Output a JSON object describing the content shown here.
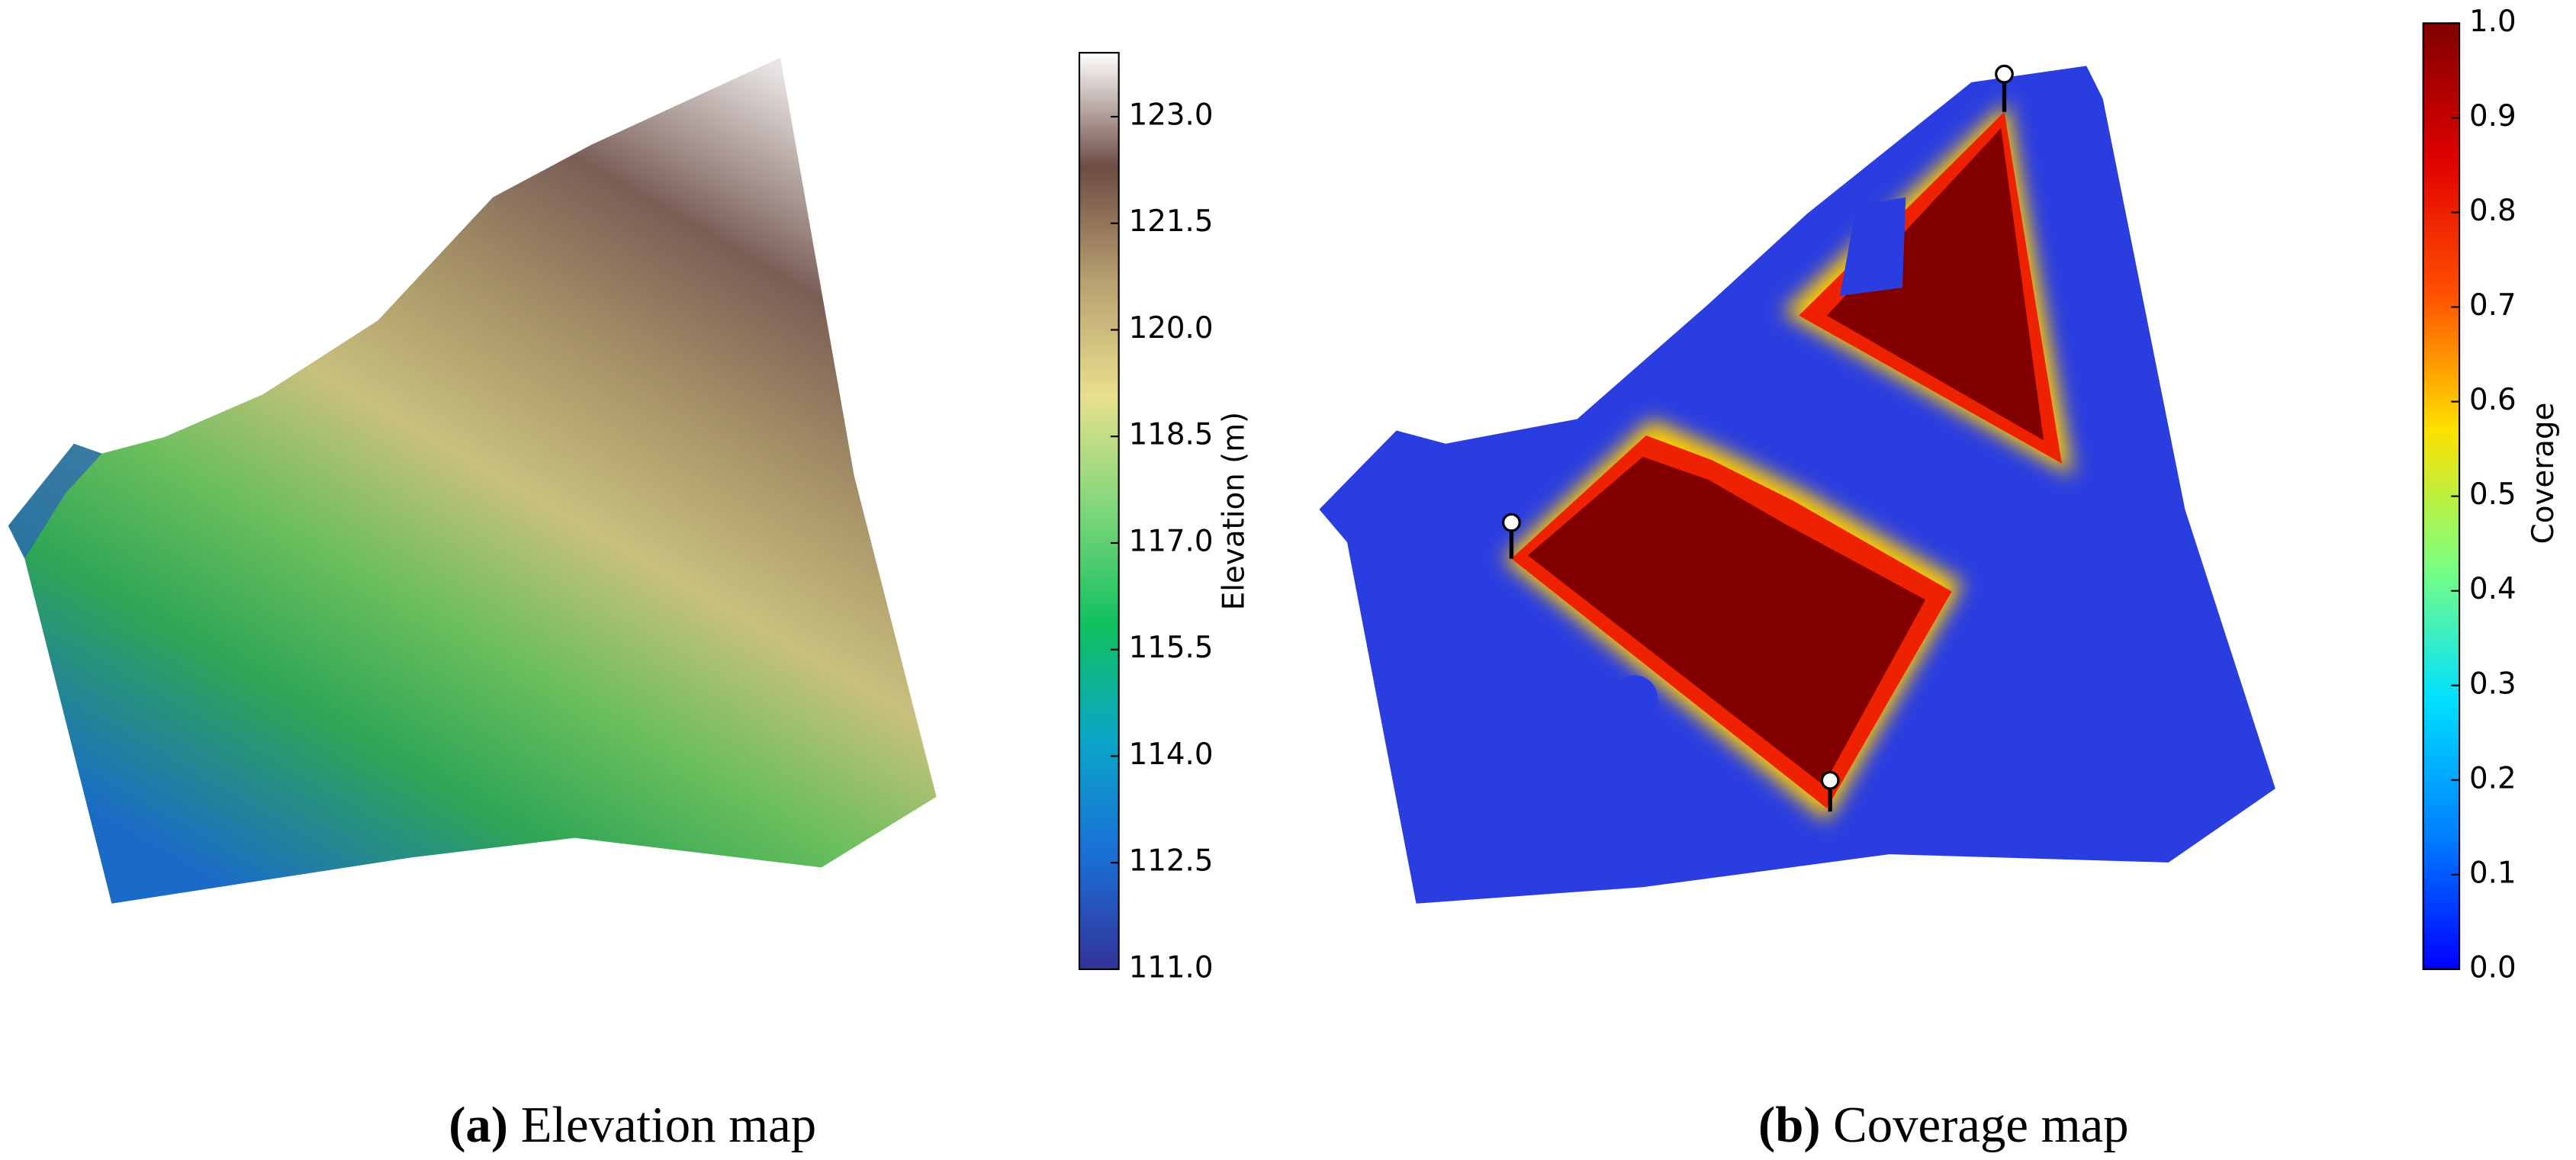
{
  "chart_data": [
    {
      "type": "surface",
      "caption_label": "(a)",
      "caption": "Elevation map",
      "colorbar_label": "Elevation (m)",
      "ylim": [
        111.0,
        123.9
      ],
      "yticks": [
        {
          "value": 111.0,
          "label": "111.0"
        },
        {
          "value": 112.5,
          "label": "112.5"
        },
        {
          "value": 114.0,
          "label": "114.0"
        },
        {
          "value": 115.5,
          "label": "115.5"
        },
        {
          "value": 117.0,
          "label": "117.0"
        },
        {
          "value": 118.5,
          "label": "118.5"
        },
        {
          "value": 120.0,
          "label": "120.0"
        },
        {
          "value": 121.5,
          "label": "121.5"
        },
        {
          "value": 123.0,
          "label": "123.0"
        }
      ],
      "colormap": [
        "#333399",
        "#1a6fd6",
        "#0aa6c8",
        "#10c060",
        "#7ed67a",
        "#e8e08c",
        "#b8a070",
        "#6e4c44",
        "#ffffff"
      ]
    },
    {
      "type": "surface",
      "caption_label": "(b)",
      "caption": "Coverage map",
      "colorbar_label": "Coverage",
      "ylim": [
        0.0,
        1.0
      ],
      "yticks": [
        {
          "value": 0.0,
          "label": "0.0"
        },
        {
          "value": 0.1,
          "label": "0.1"
        },
        {
          "value": 0.2,
          "label": "0.2"
        },
        {
          "value": 0.3,
          "label": "0.3"
        },
        {
          "value": 0.4,
          "label": "0.4"
        },
        {
          "value": 0.5,
          "label": "0.5"
        },
        {
          "value": 0.6,
          "label": "0.6"
        },
        {
          "value": 0.7,
          "label": "0.7"
        },
        {
          "value": 0.8,
          "label": "0.8"
        },
        {
          "value": 0.9,
          "label": "0.9"
        },
        {
          "value": 1.0,
          "label": "1.0"
        }
      ],
      "colormap": [
        "#0000ff",
        "#0080ff",
        "#00e0ff",
        "#7dff7d",
        "#ffe000",
        "#ff5000",
        "#e00000",
        "#800000"
      ]
    }
  ]
}
